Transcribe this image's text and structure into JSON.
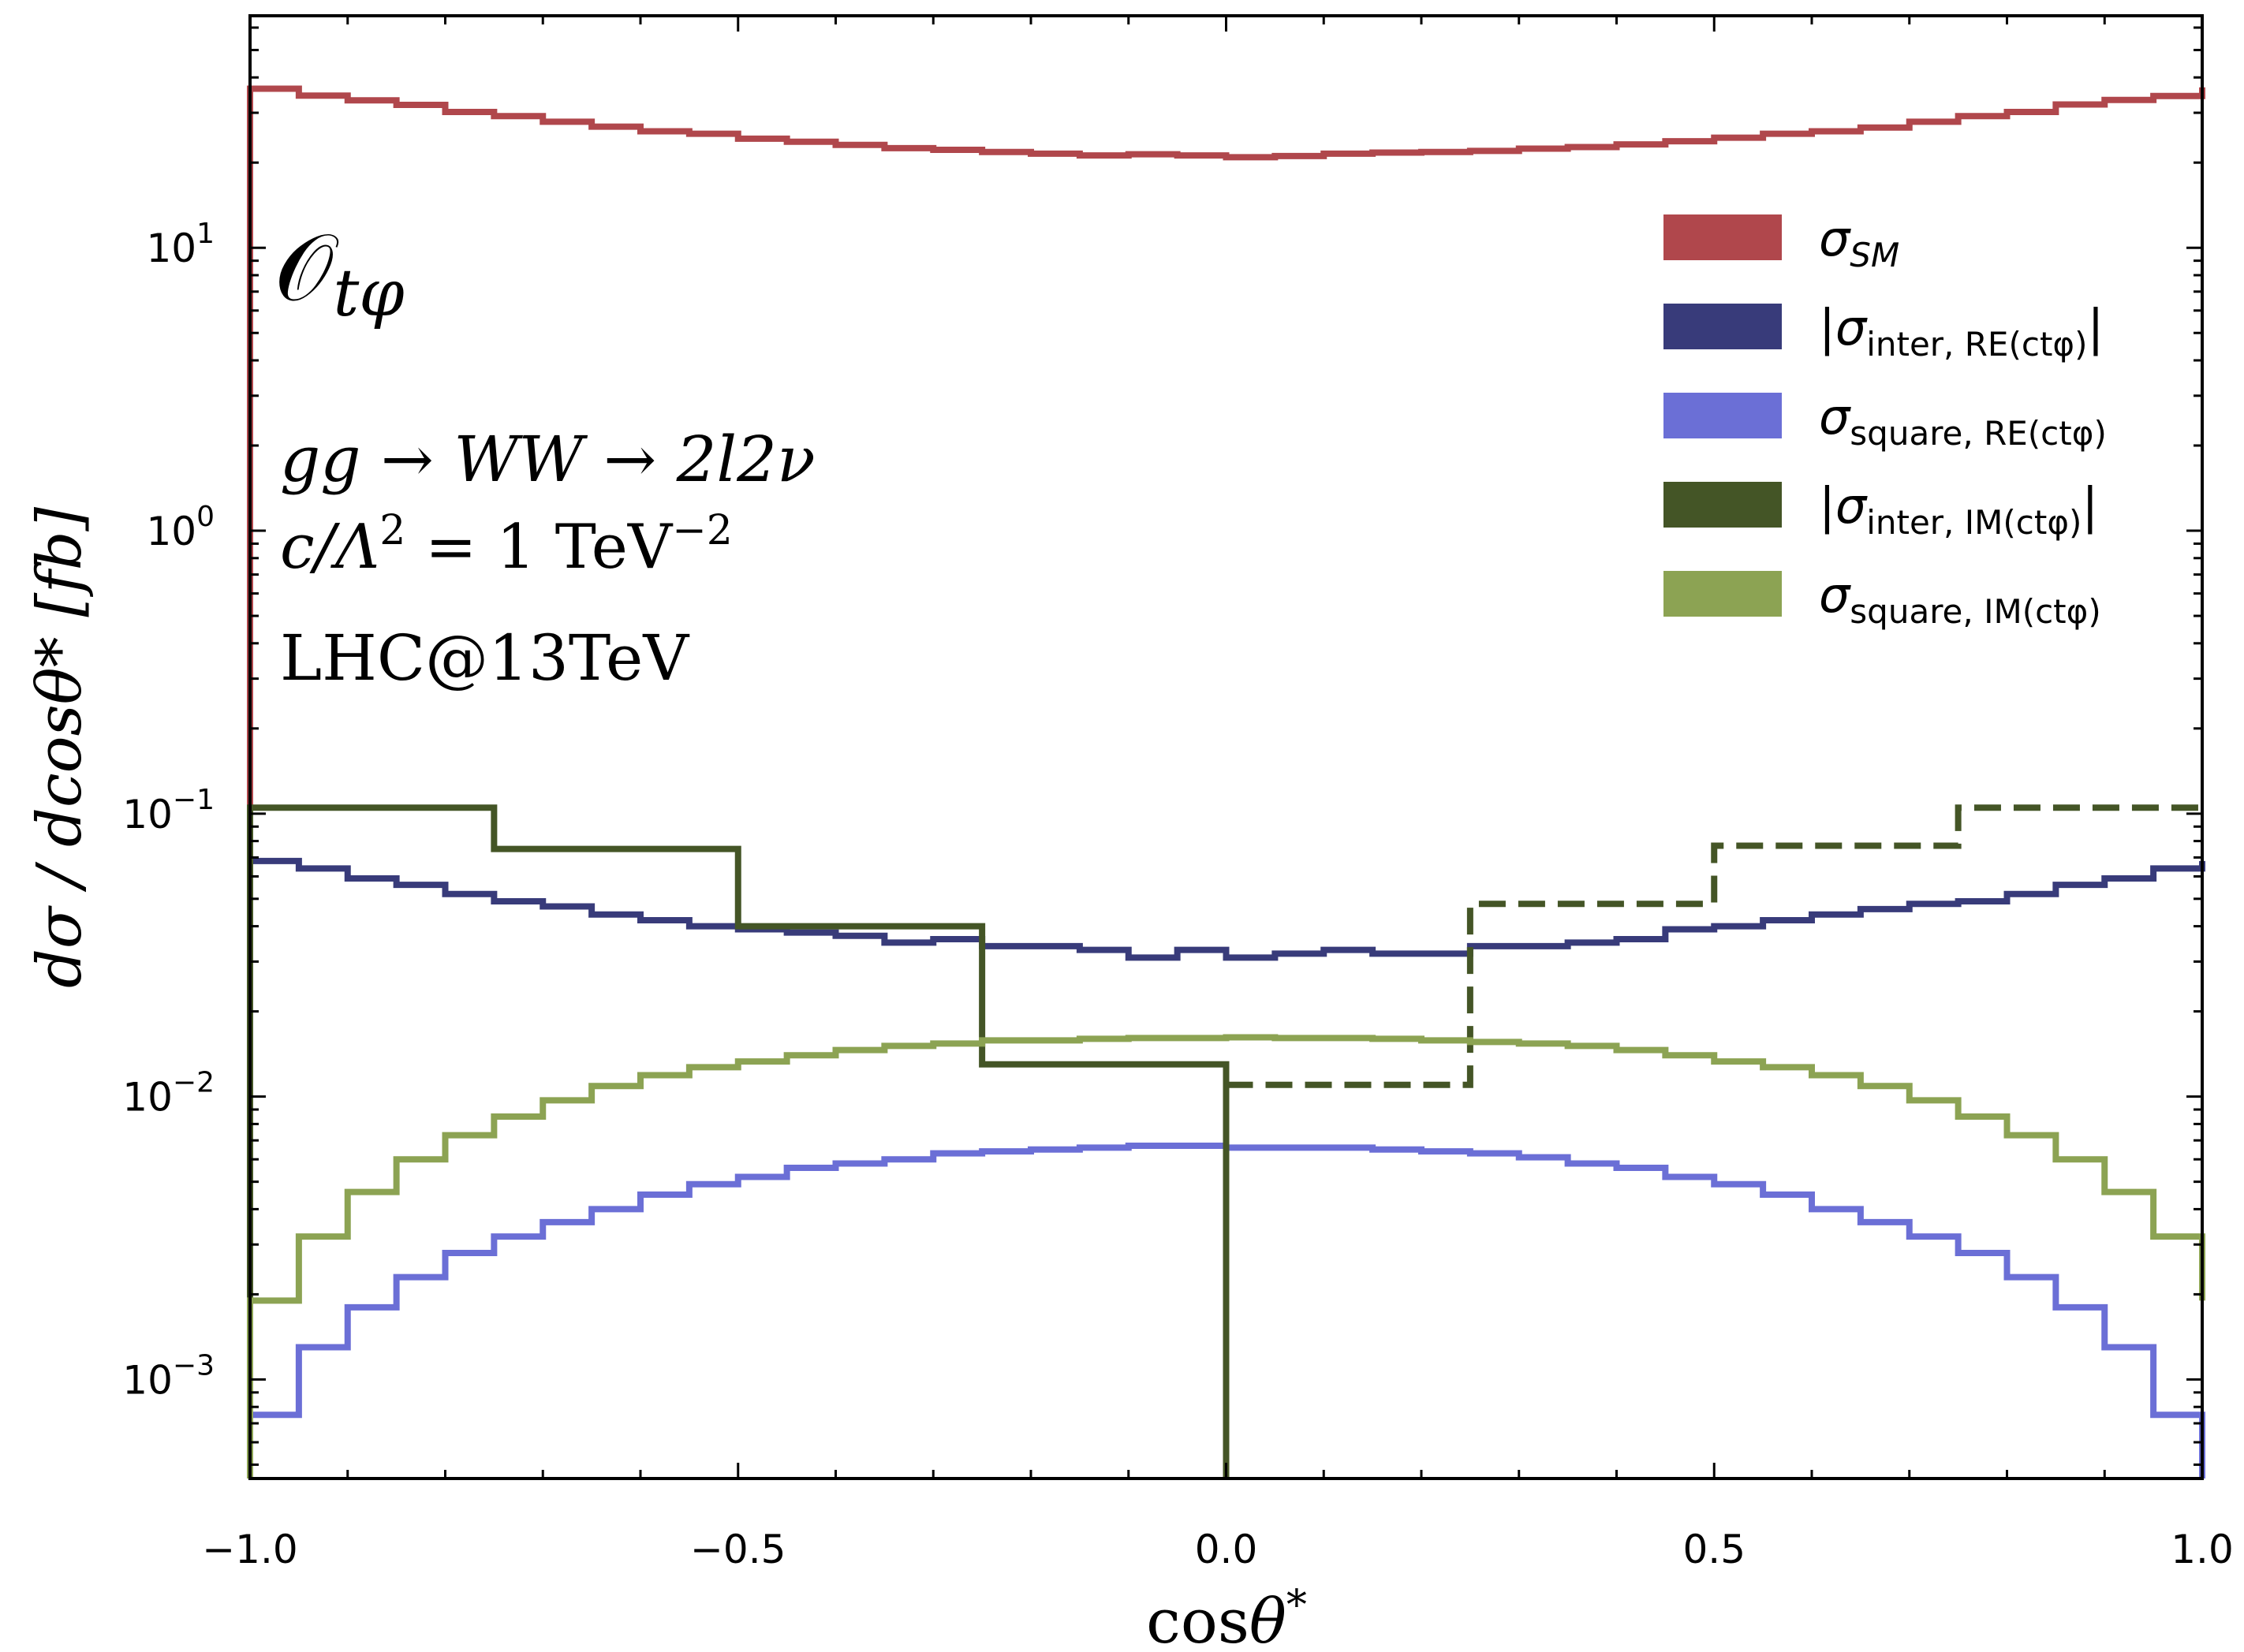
{
  "chart_data": {
    "type": "step",
    "xlabel_main": "cos",
    "xlabel_sym": "θ",
    "xlabel_sup": "*",
    "ylabel": "dσ / dcosθ* [fb]",
    "xlim": [
      -1.0,
      1.0
    ],
    "ylim_log10": [
      -3.35,
      1.82
    ],
    "x_ticks": [
      {
        "value": -1.0,
        "label": "−1.0"
      },
      {
        "value": -0.5,
        "label": "−0.5"
      },
      {
        "value": 0.0,
        "label": "0.0"
      },
      {
        "value": 0.5,
        "label": "0.5"
      },
      {
        "value": 1.0,
        "label": "1.0"
      }
    ],
    "y_ticks": [
      {
        "exp": 1,
        "base": "10",
        "sup": "1"
      },
      {
        "exp": 0,
        "base": "10",
        "sup": "0"
      },
      {
        "exp": -1,
        "base": "10",
        "sup": "−1"
      },
      {
        "exp": -2,
        "base": "10",
        "sup": "−2"
      },
      {
        "exp": -3,
        "base": "10",
        "sup": "−3"
      }
    ],
    "annotations": {
      "operator_base": "𝒪",
      "operator_sub": "tφ",
      "process": "gg → WW → 2l2ν",
      "coupling_main": "c/Λ",
      "coupling_sq": "2",
      "coupling_eq": " = 1 TeV",
      "coupling_exp": "−2",
      "collider": "LHC@13TeV"
    },
    "series": [
      {
        "name": "sm",
        "legend_sym": "σ",
        "legend_sub": "SM",
        "legend_bars": "",
        "color": "#b0474c",
        "dashed": false,
        "edges": [
          -1.0,
          -0.95,
          -0.9,
          -0.85,
          -0.8,
          -0.75,
          -0.7,
          -0.65,
          -0.6,
          -0.55,
          -0.5,
          -0.45,
          -0.4,
          -0.35,
          -0.3,
          -0.25,
          -0.2,
          -0.15,
          -0.1,
          -0.05,
          0.0,
          0.05,
          0.1,
          0.15,
          0.2,
          0.25,
          0.3,
          0.35,
          0.4,
          0.45,
          0.5,
          0.55,
          0.6,
          0.65,
          0.7,
          0.75,
          0.8,
          0.85,
          0.9,
          0.95,
          1.0
        ],
        "values": [
          36.5,
          34.5,
          33.2,
          32.0,
          30.2,
          29.2,
          27.9,
          26.8,
          25.8,
          25.3,
          24.3,
          23.7,
          23.1,
          22.5,
          22.2,
          21.8,
          21.5,
          21.2,
          21.4,
          21.2,
          20.9,
          21.1,
          21.5,
          21.7,
          21.8,
          22.0,
          22.4,
          22.7,
          23.2,
          23.8,
          24.5,
          25.3,
          25.8,
          26.6,
          27.9,
          29.2,
          30.2,
          32.1,
          33.3,
          34.4,
          36.9
        ]
      },
      {
        "name": "inter-re",
        "legend_sym": "σ",
        "legend_sub": "inter, RE(ctφ)",
        "legend_bars": "|",
        "color": "#383b7a",
        "dashed": false,
        "edges": [
          -1.0,
          -0.95,
          -0.9,
          -0.85,
          -0.8,
          -0.75,
          -0.7,
          -0.65,
          -0.6,
          -0.55,
          -0.5,
          -0.45,
          -0.4,
          -0.35,
          -0.3,
          -0.25,
          -0.2,
          -0.15,
          -0.1,
          -0.05,
          0.0,
          0.05,
          0.1,
          0.15,
          0.2,
          0.25,
          0.3,
          0.35,
          0.4,
          0.45,
          0.5,
          0.55,
          0.6,
          0.65,
          0.7,
          0.75,
          0.8,
          0.85,
          0.9,
          0.95,
          1.0
        ],
        "values": [
          0.068,
          0.064,
          0.059,
          0.056,
          0.052,
          0.049,
          0.047,
          0.044,
          0.042,
          0.04,
          0.039,
          0.038,
          0.037,
          0.035,
          0.036,
          0.034,
          0.034,
          0.033,
          0.031,
          0.033,
          0.031,
          0.032,
          0.033,
          0.032,
          0.032,
          0.034,
          0.034,
          0.035,
          0.036,
          0.039,
          0.04,
          0.042,
          0.044,
          0.046,
          0.048,
          0.049,
          0.052,
          0.056,
          0.059,
          0.064,
          0.068
        ]
      },
      {
        "name": "square-re",
        "legend_sym": "σ",
        "legend_sub": "square, RE(ctφ)",
        "legend_bars": "",
        "color": "#6b6fd6",
        "dashed": false,
        "edges": [
          -1.0,
          -0.95,
          -0.9,
          -0.85,
          -0.8,
          -0.75,
          -0.7,
          -0.65,
          -0.6,
          -0.55,
          -0.5,
          -0.45,
          -0.4,
          -0.35,
          -0.3,
          -0.25,
          -0.2,
          -0.15,
          -0.1,
          -0.05,
          0.0,
          0.05,
          0.1,
          0.15,
          0.2,
          0.25,
          0.3,
          0.35,
          0.4,
          0.45,
          0.5,
          0.55,
          0.6,
          0.65,
          0.7,
          0.75,
          0.8,
          0.85,
          0.9,
          0.95,
          1.0
        ],
        "values": [
          0.00075,
          0.0013,
          0.0018,
          0.0023,
          0.0028,
          0.0032,
          0.0036,
          0.004,
          0.0045,
          0.0049,
          0.0052,
          0.0056,
          0.0058,
          0.006,
          0.0063,
          0.0064,
          0.0065,
          0.0066,
          0.0067,
          0.0067,
          0.0066,
          0.0066,
          0.0066,
          0.0065,
          0.0064,
          0.0063,
          0.0061,
          0.0058,
          0.0056,
          0.0052,
          0.0049,
          0.0045,
          0.004,
          0.0036,
          0.0032,
          0.0028,
          0.0023,
          0.0018,
          0.0013,
          0.00075
        ]
      },
      {
        "name": "inter-im",
        "legend_sym": "σ",
        "legend_sub": "inter, IM(ctφ)",
        "legend_bars": "|",
        "color": "#445526",
        "dashed": false,
        "edges": [
          -1.0,
          -0.75,
          -0.5,
          -0.25,
          0.0
        ],
        "values": [
          0.105,
          0.075,
          0.04,
          0.013
        ]
      },
      {
        "name": "inter-im-positive",
        "legend_sym": "",
        "legend_sub": "",
        "legend_bars": "",
        "color": "#445526",
        "dashed": true,
        "edges": [
          0.0,
          0.25,
          0.5,
          0.75,
          1.0
        ],
        "values": [
          0.011,
          0.048,
          0.077,
          0.105
        ]
      },
      {
        "name": "square-im",
        "legend_sym": "σ",
        "legend_sub": "square, IM(ctφ)",
        "legend_bars": "",
        "color": "#8ca353",
        "dashed": false,
        "edges": [
          -1.0,
          -0.95,
          -0.9,
          -0.85,
          -0.8,
          -0.75,
          -0.7,
          -0.65,
          -0.6,
          -0.55,
          -0.5,
          -0.45,
          -0.4,
          -0.35,
          -0.3,
          -0.25,
          -0.2,
          -0.15,
          -0.1,
          -0.05,
          0.0,
          0.05,
          0.1,
          0.15,
          0.2,
          0.25,
          0.3,
          0.35,
          0.4,
          0.45,
          0.5,
          0.55,
          0.6,
          0.65,
          0.7,
          0.75,
          0.8,
          0.85,
          0.9,
          0.95,
          1.0
        ],
        "values": [
          0.0019,
          0.0032,
          0.0046,
          0.006,
          0.0073,
          0.0085,
          0.0097,
          0.0109,
          0.0119,
          0.0127,
          0.0133,
          0.014,
          0.0146,
          0.0151,
          0.0154,
          0.0158,
          0.0158,
          0.016,
          0.0161,
          0.0161,
          0.0162,
          0.0161,
          0.0161,
          0.016,
          0.0158,
          0.0156,
          0.0154,
          0.0151,
          0.0146,
          0.014,
          0.0133,
          0.0127,
          0.0119,
          0.0109,
          0.0097,
          0.0085,
          0.0073,
          0.006,
          0.0046,
          0.0032,
          0.0019
        ]
      }
    ]
  }
}
